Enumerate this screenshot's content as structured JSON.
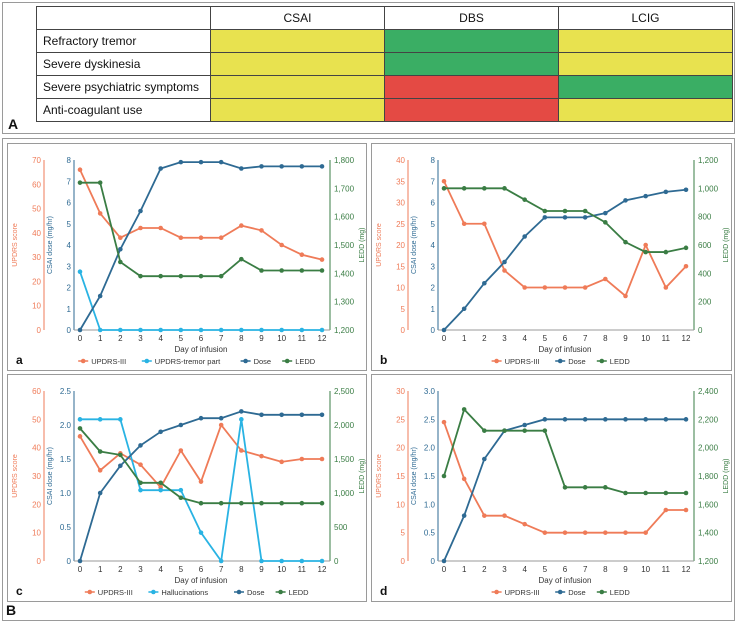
{
  "colors": {
    "yellow": "#e8e24f",
    "green": "#3aae64",
    "red": "#e44a44",
    "updrs": "#ef7b58",
    "tremor": "#29b3e3",
    "halluc": "#29b3e3",
    "dose": "#2e6a93",
    "ledd": "#3a7d44"
  },
  "panel_a": {
    "letter": "A",
    "headers": [
      "CSAI",
      "DBS",
      "LCIG"
    ],
    "rows": [
      {
        "label": "Refractory tremor",
        "cells": [
          "yellow",
          "green",
          "yellow"
        ]
      },
      {
        "label": "Severe dyskinesia",
        "cells": [
          "yellow",
          "green",
          "yellow"
        ]
      },
      {
        "label": "Severe psychiatric symptoms",
        "cells": [
          "yellow",
          "red",
          "green"
        ]
      },
      {
        "label": "Anti-coagulant use",
        "cells": [
          "yellow",
          "red",
          "yellow"
        ]
      }
    ]
  },
  "panel_b_letter": "B",
  "chart_data": [
    {
      "id": "a",
      "type": "line",
      "letter": "a",
      "xlabel": "Day of infusion",
      "x": [
        0,
        1,
        2,
        3,
        4,
        5,
        6,
        7,
        8,
        9,
        10,
        11,
        12
      ],
      "axes": [
        {
          "label": "UPDRS score",
          "ticks": [
            "0",
            "10",
            "20",
            "30",
            "40",
            "50",
            "60",
            "70"
          ],
          "ylim": [
            0,
            70
          ],
          "color": "#ef7b58"
        },
        {
          "label": "CSAI dose (mg/hr)",
          "ticks": [
            "0",
            "1",
            "2",
            "3",
            "4",
            "5",
            "6",
            "7",
            "8"
          ],
          "ylim": [
            0,
            8
          ],
          "color": "#2e6a93"
        },
        {
          "label": "LEDD (mg)",
          "ticks": [
            "1,200",
            "1,300",
            "1,400",
            "1,500",
            "1,600",
            "1,700",
            "1,800"
          ],
          "ylim": [
            1200,
            1800
          ],
          "color": "#3a7d44",
          "right": true
        }
      ],
      "series": [
        {
          "name": "UPDRS-III",
          "axis": 0,
          "color": "#ef7b58",
          "values": [
            66,
            48,
            38,
            42,
            42,
            38,
            38,
            38,
            43,
            41,
            35,
            31,
            29
          ]
        },
        {
          "name": "UPDRS-tremor part",
          "axis": 0,
          "color": "#29b3e3",
          "values": [
            24,
            0,
            0,
            0,
            0,
            0,
            0,
            0,
            0,
            0,
            0,
            0,
            0
          ]
        },
        {
          "name": "Dose",
          "axis": 1,
          "color": "#2e6a93",
          "values": [
            0,
            1.6,
            3.8,
            5.6,
            7.6,
            7.9,
            7.9,
            7.9,
            7.6,
            7.7,
            7.7,
            7.7,
            7.7
          ]
        },
        {
          "name": "LEDD",
          "axis": 2,
          "color": "#3a7d44",
          "values": [
            1720,
            1720,
            1440,
            1390,
            1390,
            1390,
            1390,
            1390,
            1450,
            1410,
            1410,
            1410,
            1410
          ]
        }
      ]
    },
    {
      "id": "b",
      "type": "line",
      "letter": "b",
      "xlabel": "Day of infusion",
      "x": [
        0,
        1,
        2,
        3,
        4,
        5,
        6,
        7,
        8,
        9,
        10,
        11,
        12
      ],
      "axes": [
        {
          "label": "UPDRS score",
          "ticks": [
            "0",
            "5",
            "10",
            "15",
            "20",
            "25",
            "30",
            "35",
            "40"
          ],
          "ylim": [
            0,
            40
          ],
          "color": "#ef7b58"
        },
        {
          "label": "CSAI dose (mg/hr)",
          "ticks": [
            "0",
            "1",
            "2",
            "3",
            "4",
            "5",
            "6",
            "7",
            "8"
          ],
          "ylim": [
            0,
            8
          ],
          "color": "#2e6a93"
        },
        {
          "label": "LEDD (mg)",
          "ticks": [
            "0",
            "200",
            "400",
            "600",
            "800",
            "1,000",
            "1,200"
          ],
          "ylim": [
            0,
            1200
          ],
          "color": "#3a7d44",
          "right": true
        }
      ],
      "series": [
        {
          "name": "UPDRS-III",
          "axis": 0,
          "color": "#ef7b58",
          "values": [
            35,
            25,
            25,
            14,
            10,
            10,
            10,
            10,
            12,
            8,
            20,
            10,
            15
          ]
        },
        {
          "name": "Dose",
          "axis": 1,
          "color": "#2e6a93",
          "values": [
            0,
            1,
            2.2,
            3.2,
            4.4,
            5.3,
            5.3,
            5.3,
            5.5,
            6.1,
            6.3,
            6.5,
            6.6
          ]
        },
        {
          "name": "LEDD",
          "axis": 2,
          "color": "#3a7d44",
          "values": [
            1000,
            1000,
            1000,
            1000,
            920,
            840,
            840,
            840,
            760,
            620,
            550,
            550,
            580
          ]
        }
      ]
    },
    {
      "id": "c",
      "type": "line",
      "letter": "c",
      "xlabel": "Day of infusion",
      "x": [
        0,
        1,
        2,
        3,
        4,
        5,
        6,
        7,
        8,
        9,
        10,
        11,
        12
      ],
      "axes": [
        {
          "label": "UPDRS score",
          "ticks": [
            "0",
            "10",
            "20",
            "30",
            "40",
            "50",
            "60"
          ],
          "ylim": [
            0,
            60
          ],
          "color": "#ef7b58"
        },
        {
          "label": "CSAI dose (mg/hr)",
          "ticks": [
            "0",
            "0.5",
            "1.0",
            "1.5",
            "2.0",
            "2.5"
          ],
          "ylim": [
            0,
            2.5
          ],
          "color": "#2e6a93"
        },
        {
          "label": "LEDD (mg)",
          "ticks": [
            "0",
            "500",
            "1,000",
            "1,500",
            "2,000",
            "2,500"
          ],
          "ylim": [
            0,
            2500
          ],
          "color": "#3a7d44",
          "right": true
        }
      ],
      "series": [
        {
          "name": "UPDRS-III",
          "axis": 0,
          "color": "#ef7b58",
          "values": [
            44,
            32,
            38,
            34,
            26,
            39,
            28,
            48,
            39,
            37,
            35,
            36,
            36
          ]
        },
        {
          "name": "Hallucinations",
          "axis": 0,
          "color": "#29b3e3",
          "values": [
            50,
            50,
            50,
            25,
            25,
            25,
            10,
            0,
            50,
            0,
            0,
            0,
            0
          ]
        },
        {
          "name": "Dose",
          "axis": 1,
          "color": "#2e6a93",
          "values": [
            0,
            1.0,
            1.4,
            1.7,
            1.9,
            2.0,
            2.1,
            2.1,
            2.2,
            2.15,
            2.15,
            2.15,
            2.15
          ]
        },
        {
          "name": "LEDD",
          "axis": 2,
          "color": "#3a7d44",
          "values": [
            1950,
            1610,
            1560,
            1150,
            1150,
            930,
            850,
            850,
            850,
            850,
            850,
            850,
            850
          ]
        }
      ]
    },
    {
      "id": "d",
      "type": "line",
      "letter": "d",
      "xlabel": "Day of infusion",
      "x": [
        0,
        1,
        2,
        3,
        4,
        5,
        6,
        7,
        8,
        9,
        10,
        11,
        12
      ],
      "axes": [
        {
          "label": "UPDRS score",
          "ticks": [
            "0",
            "5",
            "10",
            "15",
            "20",
            "25",
            "30"
          ],
          "ylim": [
            0,
            30
          ],
          "color": "#ef7b58"
        },
        {
          "label": "CSAI dose (mg/hr)",
          "ticks": [
            "0",
            "0.5",
            "1.0",
            "1.5",
            "2.0",
            "2.5",
            "3.0"
          ],
          "ylim": [
            0,
            3.0
          ],
          "color": "#2e6a93"
        },
        {
          "label": "LEDD (mg)",
          "ticks": [
            "1,200",
            "1,400",
            "1,600",
            "1,800",
            "2,000",
            "2,200",
            "2,400"
          ],
          "ylim": [
            1200,
            2400
          ],
          "color": "#3a7d44",
          "right": true
        }
      ],
      "series": [
        {
          "name": "UPDRS-III",
          "axis": 0,
          "color": "#ef7b58",
          "values": [
            24.5,
            14.5,
            8,
            8,
            6.5,
            5,
            5,
            5,
            5,
            5,
            5,
            9,
            9
          ]
        },
        {
          "name": "Dose",
          "axis": 1,
          "color": "#2e6a93",
          "values": [
            0,
            0.8,
            1.8,
            2.3,
            2.4,
            2.5,
            2.5,
            2.5,
            2.5,
            2.5,
            2.5,
            2.5,
            2.5
          ]
        },
        {
          "name": "LEDD",
          "axis": 2,
          "color": "#3a7d44",
          "values": [
            1800,
            2270,
            2120,
            2120,
            2120,
            2120,
            1720,
            1720,
            1720,
            1680,
            1680,
            1680,
            1680
          ]
        }
      ]
    }
  ]
}
